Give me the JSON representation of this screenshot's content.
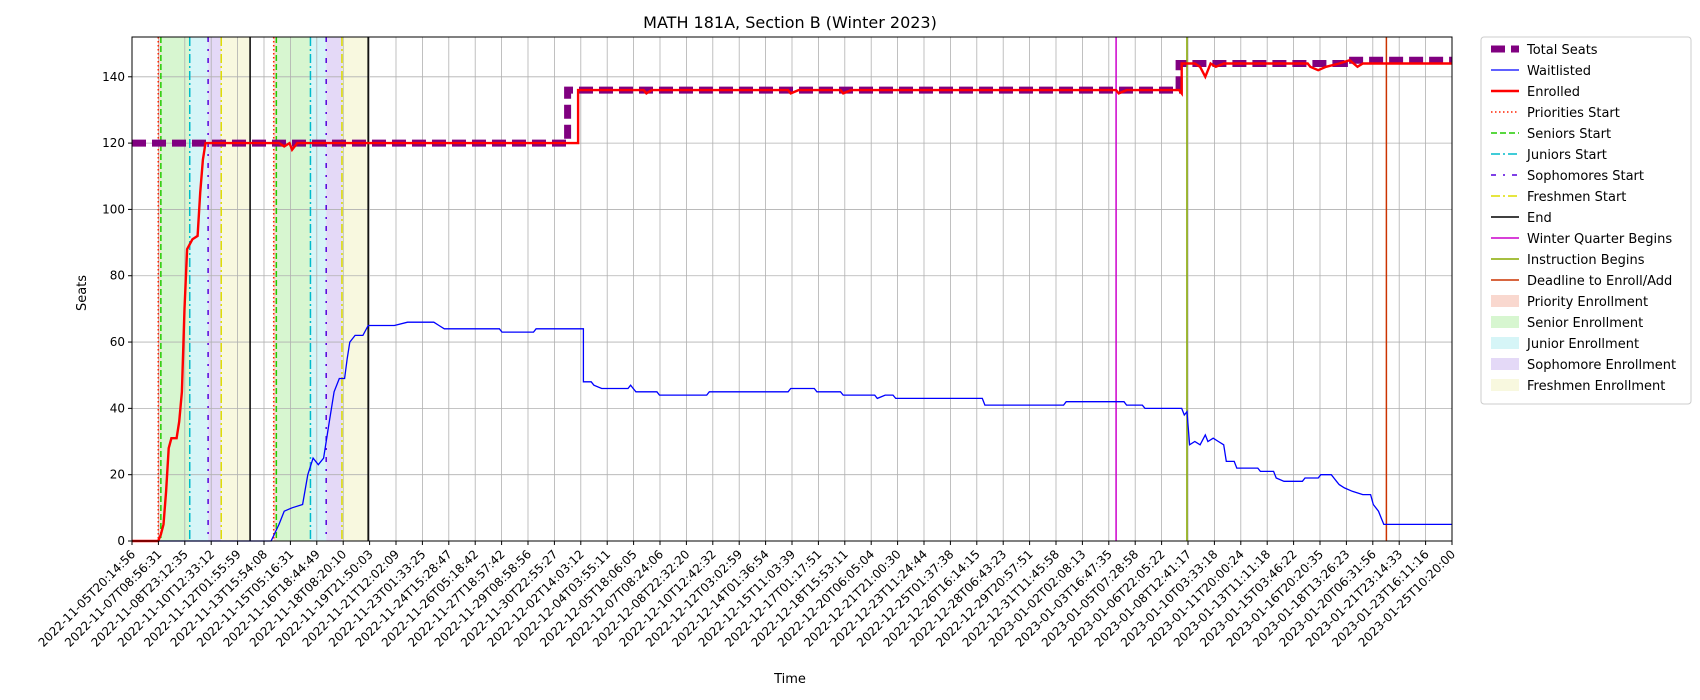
{
  "chart_data": {
    "type": "line",
    "title": "MATH 181A, Section B (Winter 2023)",
    "xlabel": "Time",
    "ylabel": "Seats",
    "ylim": [
      0,
      152
    ],
    "yticks": [
      0,
      20,
      40,
      60,
      80,
      100,
      120,
      140
    ],
    "grid": true,
    "legend_position": "outside-right",
    "x_tick_labels": [
      "2022-11-05T20:14:56",
      "2022-11-07T08:56:31",
      "2022-11-08T23:12:35",
      "2022-11-10T12:33:12",
      "2022-11-12T01:55:59",
      "2022-11-13T15:54:08",
      "2022-11-15T05:16:31",
      "2022-11-16T18:44:49",
      "2022-11-18T08:20:10",
      "2022-11-19T21:50:03",
      "2022-11-21T12:02:09",
      "2022-11-23T01:33:25",
      "2022-11-24T15:28:47",
      "2022-11-26T05:18:42",
      "2022-11-27T18:57:42",
      "2022-11-29T08:58:56",
      "2022-11-30T22:55:27",
      "2022-12-02T14:03:12",
      "2022-12-04T03:55:11",
      "2022-12-05T18:06:05",
      "2022-12-07T08:24:06",
      "2022-12-08T22:32:20",
      "2022-12-10T12:42:32",
      "2022-12-12T03:02:59",
      "2022-12-14T01:36:54",
      "2022-12-15T11:03:39",
      "2022-12-17T01:17:51",
      "2022-12-18T15:53:11",
      "2022-12-20T06:05:04",
      "2022-12-21T21:00:30",
      "2022-12-23T11:24:44",
      "2022-12-25T01:37:38",
      "2022-12-26T16:14:15",
      "2022-12-28T06:43:23",
      "2022-12-29T20:57:51",
      "2022-12-31T11:45:58",
      "2023-01-02T02:08:13",
      "2023-01-03T16:47:35",
      "2023-01-05T07:28:58",
      "2023-01-06T22:05:22",
      "2023-01-08T12:41:17",
      "2023-01-10T03:33:18",
      "2023-01-11T20:00:24",
      "2023-01-13T11:11:18",
      "2023-01-15T03:46:22",
      "2023-01-16T20:20:35",
      "2023-01-18T13:26:23",
      "2023-01-20T06:31:56",
      "2023-01-21T23:14:33",
      "2023-01-23T16:11:16",
      "2023-01-25T10:20:00"
    ],
    "series": [
      {
        "name": "Total Seats",
        "color": "#800080",
        "style": "dashed-thick",
        "points": [
          [
            0,
            120
          ],
          [
            16.6,
            120
          ],
          [
            16.6,
            136
          ],
          [
            39.9,
            136
          ],
          [
            39.9,
            144
          ],
          [
            46.2,
            144
          ],
          [
            46.2,
            145
          ],
          [
            50.3,
            145
          ]
        ]
      },
      {
        "name": "Waitlisted",
        "color": "#0000ff",
        "style": "solid-thin",
        "points": [
          [
            0,
            0
          ],
          [
            5.3,
            0
          ],
          [
            5.6,
            5
          ],
          [
            5.8,
            9
          ],
          [
            6.1,
            10
          ],
          [
            6.5,
            11
          ],
          [
            6.7,
            20
          ],
          [
            6.9,
            25
          ],
          [
            7.1,
            23
          ],
          [
            7.3,
            25
          ],
          [
            7.5,
            35
          ],
          [
            7.7,
            45
          ],
          [
            7.9,
            49
          ],
          [
            8.1,
            49
          ],
          [
            8.2,
            55
          ],
          [
            8.3,
            60
          ],
          [
            8.5,
            62
          ],
          [
            8.8,
            62
          ],
          [
            9.0,
            65
          ],
          [
            10.0,
            65
          ],
          [
            10.5,
            66
          ],
          [
            11.5,
            66
          ],
          [
            11.7,
            65
          ],
          [
            11.9,
            64
          ],
          [
            13.0,
            64
          ],
          [
            14.0,
            64
          ],
          [
            14.1,
            63
          ],
          [
            15.3,
            63
          ],
          [
            15.4,
            64
          ],
          [
            17.0,
            64
          ],
          [
            17.2,
            64
          ],
          [
            17.2,
            48
          ],
          [
            17.5,
            48
          ],
          [
            17.6,
            47
          ],
          [
            17.9,
            46
          ],
          [
            18.9,
            46
          ],
          [
            19.0,
            47
          ],
          [
            19.1,
            46
          ],
          [
            19.2,
            45
          ],
          [
            20.0,
            45
          ],
          [
            20.1,
            44
          ],
          [
            21.9,
            44
          ],
          [
            22.0,
            45
          ],
          [
            25.0,
            45
          ],
          [
            25.1,
            46
          ],
          [
            26.0,
            46
          ],
          [
            26.1,
            45
          ],
          [
            27.0,
            45
          ],
          [
            27.1,
            44
          ],
          [
            28.3,
            44
          ],
          [
            28.4,
            43
          ],
          [
            28.7,
            44
          ],
          [
            29.0,
            44
          ],
          [
            29.1,
            43
          ],
          [
            32.4,
            43
          ],
          [
            32.5,
            41
          ],
          [
            35.5,
            41
          ],
          [
            35.6,
            42
          ],
          [
            37.8,
            42
          ],
          [
            37.9,
            41
          ],
          [
            38.5,
            41
          ],
          [
            38.6,
            40
          ],
          [
            40.0,
            40
          ],
          [
            40.1,
            38
          ],
          [
            40.2,
            39
          ],
          [
            40.3,
            29
          ],
          [
            40.5,
            30
          ],
          [
            40.7,
            29
          ],
          [
            40.9,
            32
          ],
          [
            41.0,
            30
          ],
          [
            41.2,
            31
          ],
          [
            41.4,
            30
          ],
          [
            41.6,
            29
          ],
          [
            41.7,
            24
          ],
          [
            42.0,
            24
          ],
          [
            42.1,
            22
          ],
          [
            42.4,
            22
          ],
          [
            42.5,
            22
          ],
          [
            42.9,
            22
          ],
          [
            43.0,
            21
          ],
          [
            43.5,
            21
          ],
          [
            43.6,
            19
          ],
          [
            43.9,
            18
          ],
          [
            44.6,
            18
          ],
          [
            44.7,
            19
          ],
          [
            45.2,
            19
          ],
          [
            45.3,
            20
          ],
          [
            45.7,
            20
          ],
          [
            45.8,
            19
          ],
          [
            45.9,
            18
          ],
          [
            46.0,
            17
          ],
          [
            46.2,
            16
          ],
          [
            46.5,
            15
          ],
          [
            46.9,
            14
          ],
          [
            47.2,
            14
          ],
          [
            47.3,
            11
          ],
          [
            47.5,
            9
          ],
          [
            47.6,
            7
          ],
          [
            47.7,
            5
          ],
          [
            50.3,
            5
          ]
        ]
      },
      {
        "name": "Enrolled",
        "color": "#ff0000",
        "style": "solid-thick",
        "points": [
          [
            0,
            0
          ],
          [
            1.0,
            0
          ],
          [
            1.1,
            2
          ],
          [
            1.2,
            5
          ],
          [
            1.3,
            15
          ],
          [
            1.4,
            28
          ],
          [
            1.5,
            31
          ],
          [
            1.7,
            31
          ],
          [
            1.8,
            36
          ],
          [
            1.9,
            45
          ],
          [
            2.0,
            70
          ],
          [
            2.1,
            88
          ],
          [
            2.3,
            91
          ],
          [
            2.5,
            92
          ],
          [
            2.6,
            105
          ],
          [
            2.7,
            115
          ],
          [
            2.8,
            120
          ],
          [
            5.4,
            120
          ],
          [
            5.6,
            120
          ],
          [
            5.8,
            119
          ],
          [
            6.0,
            120
          ],
          [
            6.1,
            118
          ],
          [
            6.3,
            120
          ],
          [
            17.0,
            120
          ],
          [
            17.0,
            136
          ],
          [
            19.5,
            136
          ],
          [
            19.6,
            135
          ],
          [
            19.8,
            136
          ],
          [
            25.0,
            136
          ],
          [
            25.1,
            135
          ],
          [
            25.4,
            136
          ],
          [
            27.0,
            136
          ],
          [
            27.1,
            135
          ],
          [
            27.4,
            136
          ],
          [
            37.5,
            136
          ],
          [
            37.6,
            135
          ],
          [
            37.9,
            136
          ],
          [
            39.9,
            136
          ],
          [
            40.0,
            135
          ],
          [
            40.0,
            144
          ],
          [
            40.5,
            144
          ],
          [
            40.7,
            143
          ],
          [
            40.9,
            140
          ],
          [
            41.1,
            144
          ],
          [
            41.3,
            143
          ],
          [
            41.6,
            144
          ],
          [
            44.8,
            144
          ],
          [
            44.9,
            143
          ],
          [
            45.2,
            142
          ],
          [
            45.5,
            143
          ],
          [
            46.0,
            144
          ],
          [
            46.4,
            145
          ],
          [
            46.7,
            143
          ],
          [
            46.9,
            144
          ],
          [
            50.3,
            144
          ]
        ]
      }
    ],
    "event_lines": [
      {
        "name": "Priorities Start",
        "color": "#ff2200",
        "style": "dotted",
        "x": [
          1.0,
          5.4
        ]
      },
      {
        "name": "Seniors Start",
        "color": "#22cc00",
        "style": "dashed",
        "x": [
          1.1,
          5.5
        ]
      },
      {
        "name": "Juniors Start",
        "color": "#00bbcc",
        "style": "dashdot",
        "x": [
          2.2,
          6.8
        ]
      },
      {
        "name": "Sophomores Start",
        "color": "#5500dd",
        "style": "dashdot-sparse",
        "x": [
          2.9,
          7.4
        ]
      },
      {
        "name": "Freshmen Start",
        "color": "#dddd00",
        "style": "dashdot",
        "x": [
          3.4,
          8.0
        ]
      },
      {
        "name": "End",
        "color": "#000000",
        "style": "solid",
        "x": [
          4.5,
          9.0
        ]
      },
      {
        "name": "Winter Quarter Begins",
        "color": "#cc00cc",
        "style": "solid",
        "x": [
          37.5
        ]
      },
      {
        "name": "Instruction Begins",
        "color": "#88aa00",
        "style": "solid",
        "x": [
          40.2
        ]
      },
      {
        "name": "Deadline to Enroll/Add",
        "color": "#cc3300",
        "style": "solid",
        "x": [
          47.8
        ]
      }
    ],
    "regions": [
      {
        "name": "Priority Enrollment",
        "color": "#f4b8a8",
        "spans": [
          [
            1.0,
            1.1
          ],
          [
            5.4,
            5.5
          ]
        ]
      },
      {
        "name": "Senior Enrollment",
        "color": "#b6eeaa",
        "spans": [
          [
            1.1,
            2.2
          ],
          [
            5.5,
            6.8
          ]
        ]
      },
      {
        "name": "Junior Enrollment",
        "color": "#b4ecf0",
        "spans": [
          [
            2.2,
            2.9
          ],
          [
            6.8,
            7.4
          ]
        ]
      },
      {
        "name": "Sophomore Enrollment",
        "color": "#cdbaf0",
        "spans": [
          [
            2.9,
            3.4
          ],
          [
            7.4,
            8.0
          ]
        ]
      },
      {
        "name": "Freshmen Enrollment",
        "color": "#f2f2c4",
        "spans": [
          [
            3.4,
            4.5
          ],
          [
            8.0,
            9.0
          ]
        ]
      }
    ],
    "legend_entries": [
      "Total Seats",
      "Waitlisted",
      "Enrolled",
      "Priorities Start",
      "Seniors Start",
      "Juniors Start",
      "Sophomores Start",
      "Freshmen Start",
      "End",
      "Winter Quarter Begins",
      "Instruction Begins",
      "Deadline to Enroll/Add",
      "Priority Enrollment",
      "Senior Enrollment",
      "Junior Enrollment",
      "Sophomore Enrollment",
      "Freshmen Enrollment"
    ]
  }
}
